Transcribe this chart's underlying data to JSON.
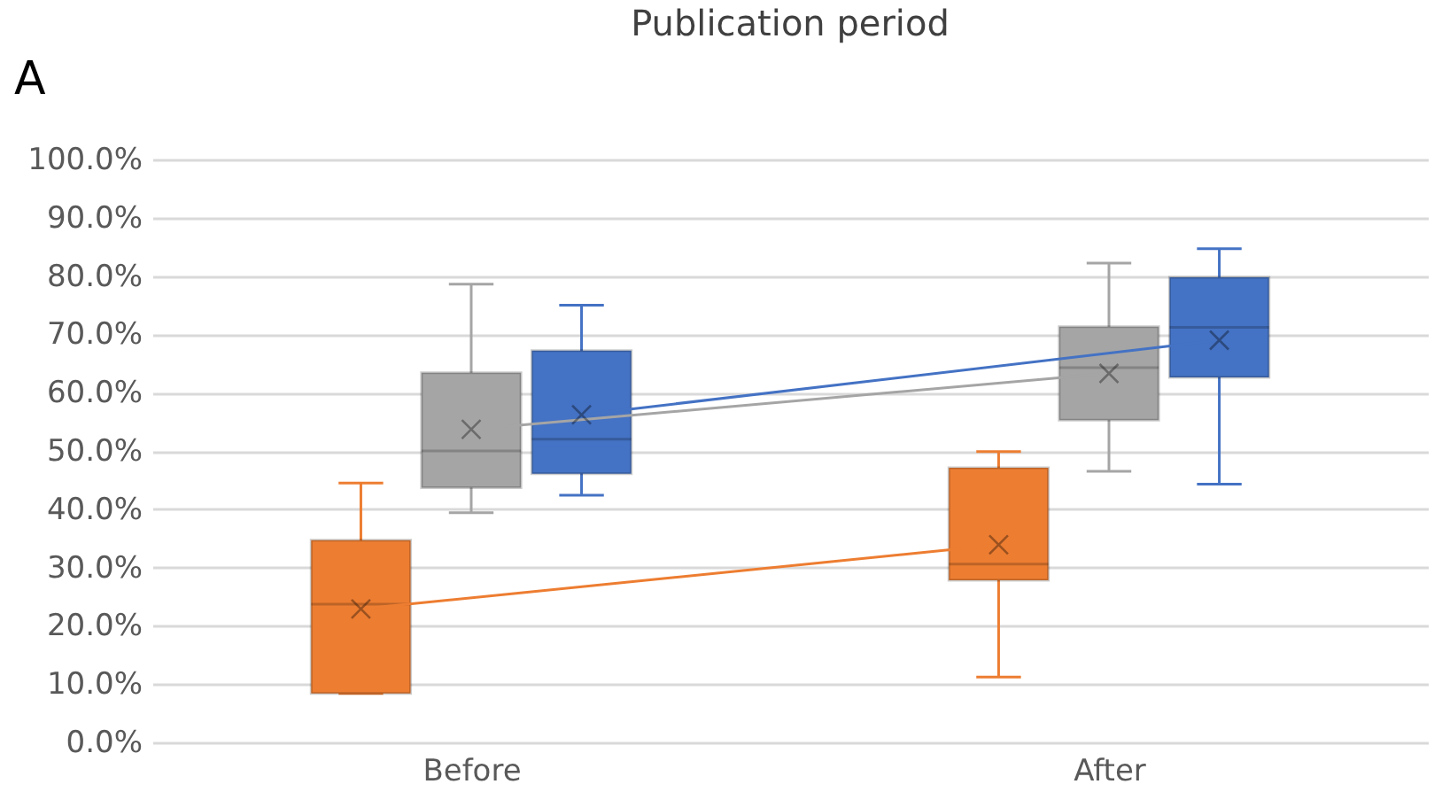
{
  "chart_data": {
    "type": "box",
    "title": "Publication period",
    "annotations": [
      "A"
    ],
    "categories": [
      "Before",
      "After"
    ],
    "ylim": [
      0,
      100
    ],
    "yticks": [
      {
        "value": 0,
        "label": "0.0%"
      },
      {
        "value": 10,
        "label": "10.0%"
      },
      {
        "value": 20,
        "label": "20.0%"
      },
      {
        "value": 30,
        "label": "30.0%"
      },
      {
        "value": 40,
        "label": "40.0%"
      },
      {
        "value": 50,
        "label": "50.0%"
      },
      {
        "value": 60,
        "label": "60.0%"
      },
      {
        "value": 70,
        "label": "70.0%"
      },
      {
        "value": 80,
        "label": "80.0%"
      },
      {
        "value": 90,
        "label": "90.0%"
      },
      {
        "value": 100,
        "label": "100.0%"
      }
    ],
    "grid": "y",
    "series": [
      {
        "color": "#ed7d31",
        "boxes": [
          {
            "low": 8.4,
            "q1": 8.4,
            "median": 23.7,
            "q3": 34.7,
            "high": 44.5,
            "mean": 22.9
          },
          {
            "low": 11.2,
            "q1": 27.8,
            "median": 30.6,
            "q3": 47.1,
            "high": 49.9,
            "mean": 33.9
          }
        ]
      },
      {
        "color": "#a5a5a5",
        "boxes": [
          {
            "low": 39.4,
            "q1": 43.7,
            "median": 50.0,
            "q3": 63.4,
            "high": 78.6,
            "mean": 53.7
          },
          {
            "low": 46.5,
            "q1": 55.3,
            "median": 64.3,
            "q3": 71.3,
            "high": 82.2,
            "mean": 63.3
          }
        ]
      },
      {
        "color": "#4472c4",
        "boxes": [
          {
            "low": 42.4,
            "q1": 46.1,
            "median": 52.0,
            "q3": 67.2,
            "high": 75.0,
            "mean": 56.2
          },
          {
            "low": 44.3,
            "q1": 62.6,
            "median": 71.2,
            "q3": 79.8,
            "high": 84.7,
            "mean": 69.0
          }
        ]
      },
      {
        "type": "line",
        "color": "#ed7d31",
        "values": [
          22.9,
          33.9
        ]
      },
      {
        "type": "line",
        "color": "#a5a5a5",
        "values": [
          53.7,
          63.3
        ]
      },
      {
        "type": "line",
        "color": "#4472c4",
        "values": [
          56.2,
          69.0
        ]
      }
    ]
  }
}
